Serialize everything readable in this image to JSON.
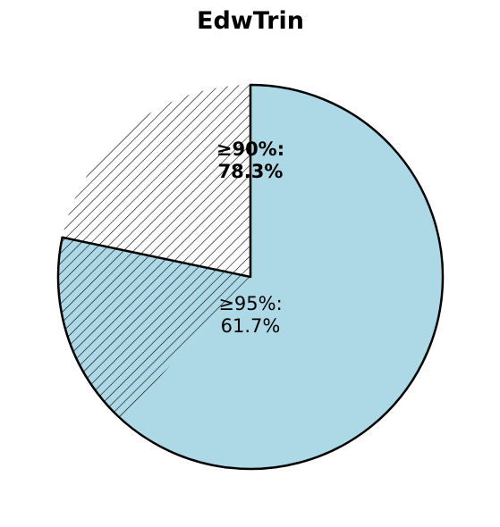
{
  "chart_data": {
    "type": "pie",
    "title": "EdwTrin",
    "slices": [
      {
        "key": "ge95",
        "value": 61.7,
        "color": "#add8e6",
        "hatch": false
      },
      {
        "key": "gap",
        "value": 16.6,
        "color": "#add8e6",
        "hatch": true
      },
      {
        "key": "rest",
        "value": 21.7,
        "color": "#ffffff",
        "hatch": true
      }
    ],
    "start_angle_deg": 90,
    "direction": "clockwise",
    "labels": [
      {
        "text": "≥90%:\n78.3%",
        "bold": true
      },
      {
        "text": "≥95%:\n61.7%",
        "bold": false
      }
    ]
  }
}
